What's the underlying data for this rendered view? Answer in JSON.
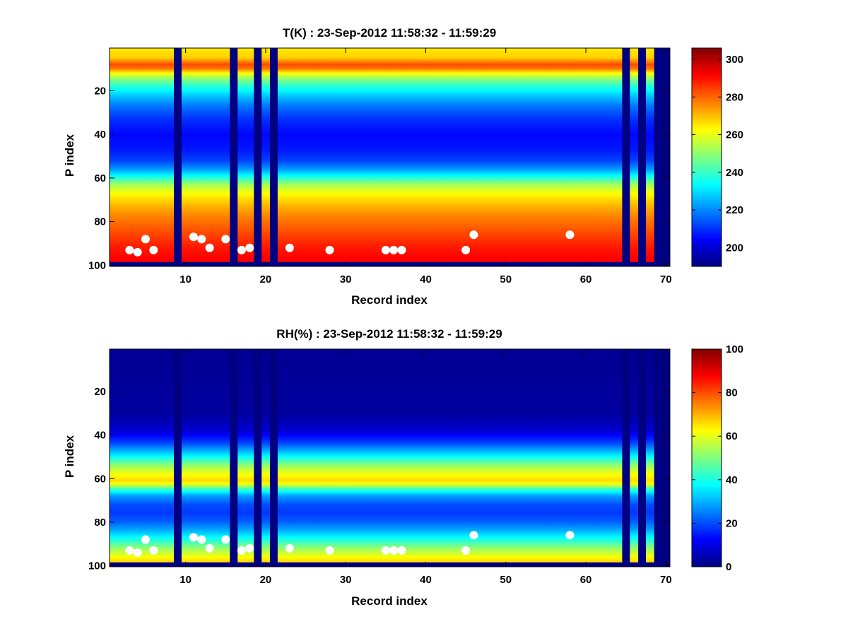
{
  "chart_data": [
    {
      "type": "heatmap",
      "title": "T(K) : 23-Sep-2012 11:58:32 - 11:59:29",
      "xlabel": "Record index",
      "ylabel": "P index",
      "xlim": [
        0.5,
        70.5
      ],
      "ylim": [
        1,
        100
      ],
      "y_reversed": true,
      "x_ticks": [
        10,
        20,
        30,
        40,
        50,
        60,
        70
      ],
      "y_ticks": [
        20,
        40,
        60,
        80,
        100
      ],
      "colorbar": {
        "clim": [
          190,
          306
        ],
        "ticks": [
          200,
          220,
          240,
          260,
          280,
          300
        ],
        "colormap": "jet"
      },
      "missing_records": [
        9,
        16,
        19,
        21,
        65,
        67,
        69,
        70
      ],
      "missing_fill_value": 190,
      "valid_p_max": 98,
      "profile": [
        {
          "p": 1,
          "value": 265
        },
        {
          "p": 5,
          "value": 268
        },
        {
          "p": 8,
          "value": 283
        },
        {
          "p": 10,
          "value": 278
        },
        {
          "p": 12,
          "value": 262
        },
        {
          "p": 15,
          "value": 248
        },
        {
          "p": 18,
          "value": 238
        },
        {
          "p": 22,
          "value": 228
        },
        {
          "p": 27,
          "value": 218
        },
        {
          "p": 33,
          "value": 210
        },
        {
          "p": 40,
          "value": 205
        },
        {
          "p": 47,
          "value": 207
        },
        {
          "p": 52,
          "value": 212
        },
        {
          "p": 56,
          "value": 222
        },
        {
          "p": 60,
          "value": 238
        },
        {
          "p": 63,
          "value": 252
        },
        {
          "p": 67,
          "value": 262
        },
        {
          "p": 72,
          "value": 270
        },
        {
          "p": 78,
          "value": 277
        },
        {
          "p": 85,
          "value": 283
        },
        {
          "p": 92,
          "value": 289
        },
        {
          "p": 98,
          "value": 292
        }
      ],
      "markers": [
        {
          "x": 3,
          "y": 93
        },
        {
          "x": 4,
          "y": 94
        },
        {
          "x": 5,
          "y": 88
        },
        {
          "x": 6,
          "y": 93
        },
        {
          "x": 11,
          "y": 87
        },
        {
          "x": 12,
          "y": 88
        },
        {
          "x": 13,
          "y": 92
        },
        {
          "x": 15,
          "y": 88
        },
        {
          "x": 17,
          "y": 93
        },
        {
          "x": 18,
          "y": 92
        },
        {
          "x": 23,
          "y": 92
        },
        {
          "x": 28,
          "y": 93
        },
        {
          "x": 35,
          "y": 93
        },
        {
          "x": 36,
          "y": 93
        },
        {
          "x": 37,
          "y": 93
        },
        {
          "x": 45,
          "y": 93
        },
        {
          "x": 46,
          "y": 86
        },
        {
          "x": 58,
          "y": 86
        }
      ]
    },
    {
      "type": "heatmap",
      "title": "RH(%) : 23-Sep-2012 11:58:32 - 11:59:29",
      "xlabel": "Record index",
      "ylabel": "P index",
      "xlim": [
        0.5,
        70.5
      ],
      "ylim": [
        1,
        100
      ],
      "y_reversed": true,
      "x_ticks": [
        10,
        20,
        30,
        40,
        50,
        60,
        70
      ],
      "y_ticks": [
        20,
        40,
        60,
        80,
        100
      ],
      "colorbar": {
        "clim": [
          0,
          100
        ],
        "ticks": [
          0,
          20,
          40,
          60,
          80,
          100
        ],
        "colormap": "jet"
      },
      "missing_records": [
        9,
        16,
        19,
        21,
        65,
        67,
        69,
        70
      ],
      "missing_fill_value": 0,
      "valid_p_max": 98,
      "profile": [
        {
          "p": 1,
          "value": 2
        },
        {
          "p": 30,
          "value": 3
        },
        {
          "p": 38,
          "value": 8
        },
        {
          "p": 44,
          "value": 20
        },
        {
          "p": 50,
          "value": 38
        },
        {
          "p": 54,
          "value": 52
        },
        {
          "p": 58,
          "value": 62
        },
        {
          "p": 61,
          "value": 66
        },
        {
          "p": 63,
          "value": 58
        },
        {
          "p": 65,
          "value": 42
        },
        {
          "p": 68,
          "value": 28
        },
        {
          "p": 72,
          "value": 20
        },
        {
          "p": 76,
          "value": 18
        },
        {
          "p": 80,
          "value": 22
        },
        {
          "p": 84,
          "value": 30
        },
        {
          "p": 88,
          "value": 40
        },
        {
          "p": 92,
          "value": 52
        },
        {
          "p": 96,
          "value": 62
        },
        {
          "p": 98,
          "value": 66
        }
      ],
      "markers": [
        {
          "x": 3,
          "y": 93
        },
        {
          "x": 4,
          "y": 94
        },
        {
          "x": 5,
          "y": 88
        },
        {
          "x": 6,
          "y": 93
        },
        {
          "x": 11,
          "y": 87
        },
        {
          "x": 12,
          "y": 88
        },
        {
          "x": 13,
          "y": 92
        },
        {
          "x": 15,
          "y": 88
        },
        {
          "x": 17,
          "y": 93
        },
        {
          "x": 18,
          "y": 92
        },
        {
          "x": 23,
          "y": 92
        },
        {
          "x": 28,
          "y": 93
        },
        {
          "x": 35,
          "y": 93
        },
        {
          "x": 36,
          "y": 93
        },
        {
          "x": 37,
          "y": 93
        },
        {
          "x": 45,
          "y": 93
        },
        {
          "x": 46,
          "y": 86
        },
        {
          "x": 58,
          "y": 86
        }
      ]
    }
  ]
}
